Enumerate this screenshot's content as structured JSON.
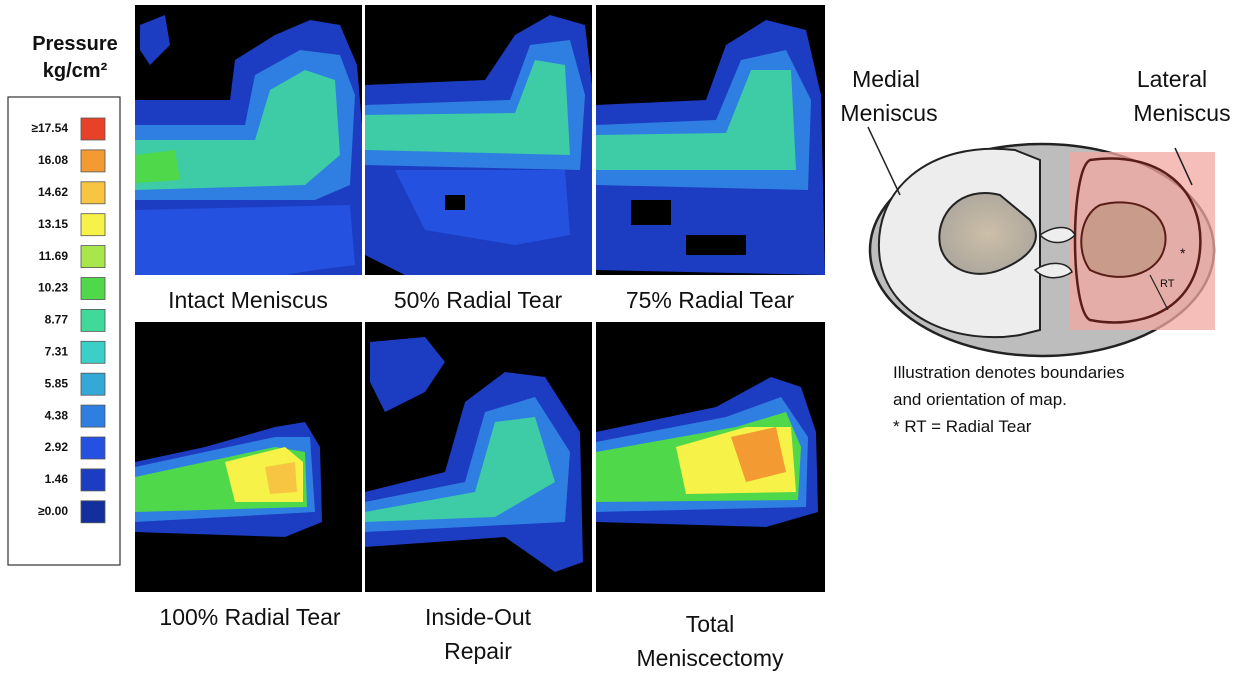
{
  "legend": {
    "title": "Pressure",
    "unit": "kg/cm²",
    "items": [
      {
        "label": "≥17.54",
        "color": "#e8412a"
      },
      {
        "label": "16.08",
        "color": "#f39a32"
      },
      {
        "label": "14.62",
        "color": "#f8c543"
      },
      {
        "label": "13.15",
        "color": "#f6f247"
      },
      {
        "label": "11.69",
        "color": "#a8e64c"
      },
      {
        "label": "10.23",
        "color": "#4fd84a"
      },
      {
        "label": "8.77",
        "color": "#40d99a"
      },
      {
        "label": "7.31",
        "color": "#3ccfc8"
      },
      {
        "label": "5.85",
        "color": "#34a8d6"
      },
      {
        "label": "4.38",
        "color": "#2f7ee2"
      },
      {
        "label": "2.92",
        "color": "#2451e0"
      },
      {
        "label": "1.46",
        "color": "#1c3cc2"
      },
      {
        "label": "≥0.00",
        "color": "#132f9e"
      }
    ]
  },
  "panels": [
    {
      "label": [
        "Intact Meniscus"
      ]
    },
    {
      "label": [
        "50% Radial Tear"
      ]
    },
    {
      "label": [
        "75% Radial Tear"
      ]
    },
    {
      "label": [
        "100% Radial Tear"
      ]
    },
    {
      "label": [
        "Inside-Out",
        "Repair"
      ]
    },
    {
      "label": [
        "Total",
        "Meniscectomy"
      ]
    }
  ],
  "illustration": {
    "medial": [
      "Medial",
      "Meniscus"
    ],
    "lateral": [
      "Lateral",
      "Meniscus"
    ],
    "star": "*",
    "rt": "RT",
    "caption": [
      "Illustration denotes boundaries",
      "and orientation of map.",
      "* RT = Radial Tear"
    ]
  }
}
